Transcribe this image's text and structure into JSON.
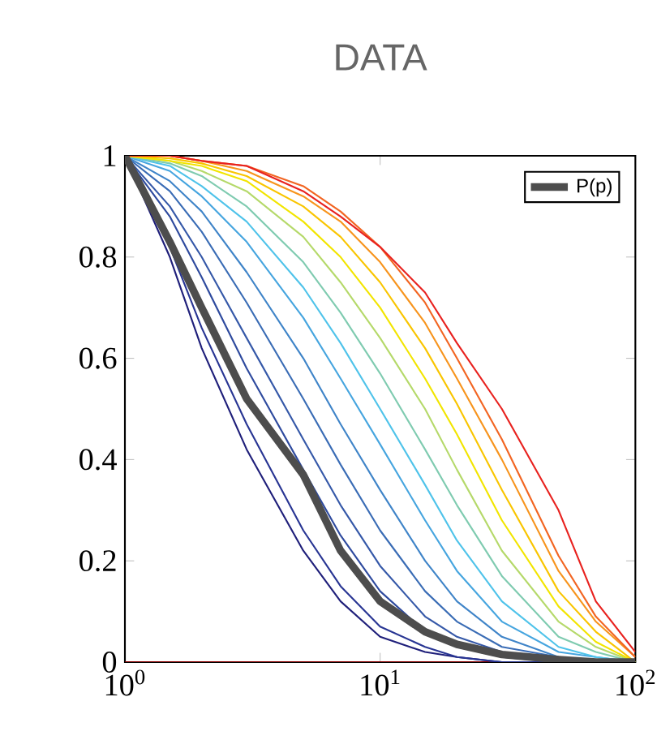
{
  "chart_data": {
    "type": "line",
    "title": "DATA",
    "x": [
      1,
      1.5,
      2,
      3,
      5,
      7,
      10,
      15,
      20,
      30,
      50,
      70,
      100
    ],
    "log": "x",
    "xlim": [
      1,
      100
    ],
    "ylim": [
      0,
      1
    ],
    "xticks": [
      {
        "value": 1,
        "label": "10$^{0}$"
      },
      {
        "value": 10,
        "label": "10$^{1}$"
      },
      {
        "value": 100,
        "label": "10$^{2}$"
      }
    ],
    "yticks": [
      0,
      0.2,
      0.4,
      0.6,
      0.8,
      1
    ],
    "grid": false,
    "legend": "top right",
    "marker": "none",
    "line_style": "solid",
    "series": [
      {
        "color": "#8b0000",
        "values": [
          0,
          0,
          0,
          0,
          0,
          0,
          0,
          0,
          0,
          0,
          0,
          null,
          null
        ]
      },
      {
        "color": "#1f1f7a",
        "values": [
          1,
          0.8,
          0.62,
          0.42,
          0.22,
          0.12,
          0.05,
          0.02,
          0.01,
          0,
          0,
          0,
          0
        ]
      },
      {
        "color": "#283593",
        "values": [
          1,
          0.82,
          0.66,
          0.47,
          0.26,
          0.15,
          0.07,
          0.03,
          0.01,
          0,
          0,
          0,
          0
        ]
      },
      {
        "color": "#2e4a9e",
        "values": [
          1,
          0.88,
          0.76,
          0.58,
          0.38,
          0.25,
          0.14,
          0.06,
          0.03,
          0.01,
          0,
          0,
          0
        ]
      },
      {
        "color": "#3558a8",
        "values": [
          1,
          0.9,
          0.8,
          0.64,
          0.44,
          0.31,
          0.19,
          0.09,
          0.05,
          0.02,
          0,
          0,
          0
        ]
      },
      {
        "color": "#3a6cb5",
        "values": [
          1,
          0.93,
          0.85,
          0.71,
          0.52,
          0.39,
          0.26,
          0.14,
          0.08,
          0.03,
          0.01,
          0,
          0
        ]
      },
      {
        "color": "#3f84c8",
        "values": [
          1,
          0.95,
          0.89,
          0.77,
          0.6,
          0.47,
          0.34,
          0.2,
          0.12,
          0.05,
          0.01,
          0,
          0
        ]
      },
      {
        "color": "#46a5df",
        "values": [
          1,
          0.97,
          0.92,
          0.83,
          0.68,
          0.56,
          0.43,
          0.28,
          0.18,
          0.08,
          0.02,
          0.01,
          0
        ]
      },
      {
        "color": "#4fc3ea",
        "values": [
          1,
          0.98,
          0.94,
          0.87,
          0.74,
          0.63,
          0.5,
          0.35,
          0.24,
          0.12,
          0.03,
          0.01,
          0
        ]
      },
      {
        "color": "#7fcbb0",
        "values": [
          1,
          0.985,
          0.96,
          0.9,
          0.79,
          0.69,
          0.57,
          0.42,
          0.31,
          0.17,
          0.05,
          0.02,
          0
        ]
      },
      {
        "color": "#b5d96a",
        "values": [
          1,
          0.99,
          0.97,
          0.93,
          0.84,
          0.75,
          0.64,
          0.5,
          0.38,
          0.22,
          0.08,
          0.03,
          0
        ]
      },
      {
        "color": "#f2e500",
        "values": [
          1,
          0.99,
          0.98,
          0.95,
          0.87,
          0.8,
          0.7,
          0.56,
          0.45,
          0.28,
          0.11,
          0.04,
          0
        ]
      },
      {
        "color": "#f9c500",
        "values": [
          1,
          0.995,
          0.985,
          0.96,
          0.9,
          0.84,
          0.75,
          0.62,
          0.51,
          0.34,
          0.14,
          0.06,
          0
        ]
      },
      {
        "color": "#f7941d",
        "values": [
          1,
          1,
          0.99,
          0.97,
          0.92,
          0.87,
          0.79,
          0.67,
          0.56,
          0.4,
          0.18,
          0.08,
          0.01
        ]
      },
      {
        "color": "#f26522",
        "values": [
          1,
          1,
          0.99,
          0.98,
          0.94,
          0.89,
          0.82,
          0.71,
          0.6,
          0.44,
          0.21,
          0.09,
          0.01
        ]
      },
      {
        "color": "#e8221f",
        "values": [
          1,
          1,
          0.99,
          0.98,
          0.93,
          0.88,
          0.82,
          0.73,
          0.63,
          0.5,
          0.3,
          0.12,
          0.02
        ]
      },
      {
        "name": "P(p)",
        "color": "#4d4d4d",
        "values": [
          1,
          0.83,
          0.7,
          0.52,
          0.37,
          0.22,
          0.12,
          0.06,
          0.035,
          0.015,
          0.005,
          0,
          0
        ]
      }
    ]
  }
}
